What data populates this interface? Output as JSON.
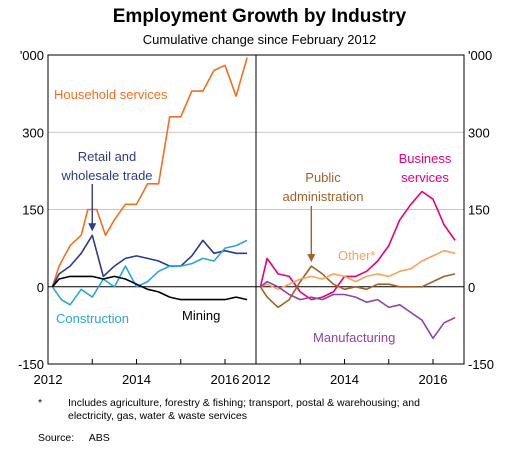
{
  "title": "Employment Growth by Industry",
  "subtitle": "Cumulative change since February 2012",
  "footnote": {
    "mark": "*",
    "text": "Includes agriculture, forestry & fishing; transport, postal & warehousing; and electricity, gas, water & waste services"
  },
  "source": {
    "label": "Source:",
    "value": "ABS"
  },
  "colors": {
    "household": "#f26f21",
    "retail": "#2e3a8c",
    "construction": "#2aa5dc",
    "mining": "#000000",
    "business": "#e6007e",
    "public": "#a0612b",
    "other": "#f8a35a",
    "manufacturing": "#8e45a5"
  },
  "chart_data": [
    {
      "type": "line",
      "panel": "left",
      "unit_label": "'000",
      "ylim": [
        -150,
        450
      ],
      "yticks": [
        "-150",
        "0",
        "150",
        "300"
      ],
      "xlim": [
        2012,
        2016.7
      ],
      "xticks": [
        "2012",
        "2014",
        "2016"
      ],
      "grid": true,
      "series": [
        {
          "name": "Household services",
          "color_key": "household",
          "x": [
            2012.1,
            2012.25,
            2012.5,
            2012.75,
            2012.9,
            2013.1,
            2013.3,
            2013.5,
            2013.75,
            2014.0,
            2014.25,
            2014.5,
            2014.75,
            2015.0,
            2015.25,
            2015.5,
            2015.75,
            2016.0,
            2016.25,
            2016.5
          ],
          "y": [
            0,
            40,
            80,
            100,
            150,
            150,
            100,
            130,
            160,
            160,
            200,
            200,
            330,
            330,
            380,
            380,
            420,
            430,
            370,
            445
          ]
        },
        {
          "name": "Retail and wholesale trade",
          "color_key": "retail",
          "x": [
            2012.1,
            2012.25,
            2012.5,
            2012.75,
            2013.0,
            2013.25,
            2013.5,
            2013.75,
            2014.0,
            2014.25,
            2014.5,
            2014.75,
            2015.0,
            2015.25,
            2015.5,
            2015.75,
            2016.0,
            2016.25,
            2016.5
          ],
          "y": [
            0,
            25,
            40,
            65,
            100,
            20,
            40,
            55,
            60,
            55,
            50,
            40,
            40,
            60,
            90,
            65,
            70,
            65,
            65
          ]
        },
        {
          "name": "Construction",
          "color_key": "construction",
          "x": [
            2012.1,
            2012.3,
            2012.5,
            2012.75,
            2013.0,
            2013.25,
            2013.5,
            2013.75,
            2014.0,
            2014.25,
            2014.5,
            2014.75,
            2015.0,
            2015.25,
            2015.5,
            2015.75,
            2016.0,
            2016.25,
            2016.5
          ],
          "y": [
            0,
            -25,
            -35,
            -5,
            -20,
            15,
            0,
            40,
            0,
            10,
            30,
            40,
            40,
            45,
            55,
            50,
            75,
            80,
            90
          ]
        },
        {
          "name": "Mining",
          "color_key": "mining",
          "x": [
            2012.1,
            2012.25,
            2012.5,
            2012.75,
            2013.0,
            2013.25,
            2013.5,
            2013.75,
            2014.0,
            2014.25,
            2014.5,
            2014.75,
            2015.0,
            2015.25,
            2015.5,
            2015.75,
            2016.0,
            2016.25,
            2016.5
          ],
          "y": [
            0,
            15,
            20,
            20,
            20,
            15,
            20,
            15,
            5,
            -5,
            -10,
            -20,
            -25,
            -25,
            -25,
            -25,
            -25,
            -20,
            -25
          ]
        }
      ],
      "labels": [
        "Household services",
        "Retail and",
        "wholesale trade",
        "Construction",
        "Mining"
      ]
    },
    {
      "type": "line",
      "panel": "right",
      "unit_label": "'000",
      "ylim": [
        -150,
        450
      ],
      "yticks": [
        "-150",
        "0",
        "150",
        "300"
      ],
      "xlim": [
        2012,
        2016.7
      ],
      "xticks": [
        "2012",
        "2014",
        "2016"
      ],
      "grid": true,
      "series": [
        {
          "name": "Business services",
          "color_key": "business",
          "x": [
            2012.1,
            2012.25,
            2012.5,
            2012.75,
            2013.0,
            2013.25,
            2013.5,
            2013.75,
            2014.0,
            2014.25,
            2014.5,
            2014.75,
            2015.0,
            2015.25,
            2015.5,
            2015.75,
            2016.0,
            2016.25,
            2016.5
          ],
          "y": [
            0,
            55,
            25,
            20,
            -10,
            -25,
            -20,
            -10,
            20,
            20,
            30,
            50,
            80,
            130,
            160,
            185,
            170,
            120,
            90
          ]
        },
        {
          "name": "Public administration",
          "color_key": "public",
          "x": [
            2012.1,
            2012.25,
            2012.5,
            2012.75,
            2013.0,
            2013.25,
            2013.5,
            2013.75,
            2014.0,
            2014.25,
            2014.5,
            2014.75,
            2015.0,
            2015.25,
            2015.5,
            2015.75,
            2016.0,
            2016.25,
            2016.5
          ],
          "y": [
            0,
            -20,
            -40,
            -25,
            10,
            40,
            25,
            5,
            -5,
            0,
            -5,
            5,
            5,
            0,
            0,
            0,
            10,
            20,
            25
          ]
        },
        {
          "name": "Other*",
          "color_key": "other",
          "x": [
            2012.1,
            2012.25,
            2012.5,
            2012.75,
            2013.0,
            2013.25,
            2013.5,
            2013.75,
            2014.0,
            2014.25,
            2014.5,
            2014.75,
            2015.0,
            2015.25,
            2015.5,
            2015.75,
            2016.0,
            2016.25,
            2016.5
          ],
          "y": [
            0,
            5,
            -5,
            5,
            15,
            20,
            15,
            25,
            20,
            10,
            20,
            25,
            20,
            30,
            35,
            50,
            60,
            70,
            65
          ]
        },
        {
          "name": "Manufacturing",
          "color_key": "manufacturing",
          "x": [
            2012.1,
            2012.25,
            2012.5,
            2012.75,
            2013.0,
            2013.25,
            2013.5,
            2013.75,
            2014.0,
            2014.25,
            2014.5,
            2014.75,
            2015.0,
            2015.25,
            2015.5,
            2015.75,
            2016.0,
            2016.25,
            2016.5
          ],
          "y": [
            0,
            10,
            0,
            -15,
            -25,
            -20,
            -25,
            -15,
            -15,
            -20,
            -30,
            -25,
            -40,
            -35,
            -50,
            -65,
            -100,
            -70,
            -60
          ]
        }
      ],
      "labels": [
        "Business",
        "services",
        "Public",
        "administration",
        "Other*",
        "Manufacturing"
      ]
    }
  ]
}
